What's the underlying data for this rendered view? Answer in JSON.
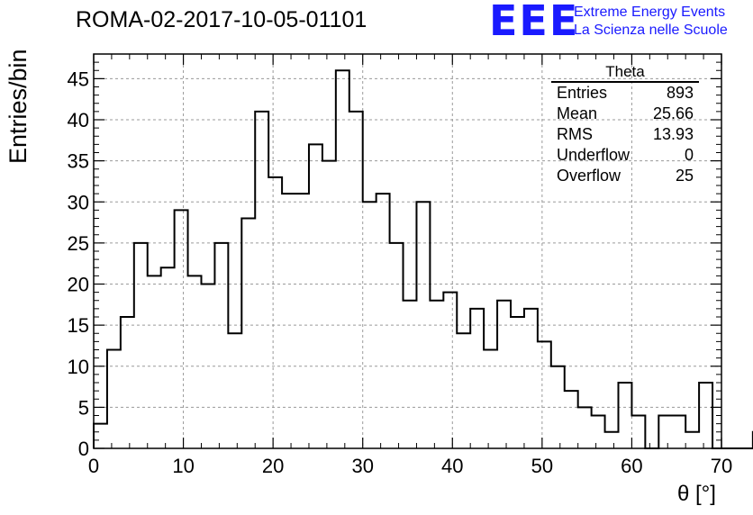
{
  "header": {
    "run_title": "ROMA-02-2017-10-05-01101",
    "logo_text": "EEE",
    "logo_line1": "Extreme Energy Events",
    "logo_line2": "La Scienza nelle Scuole"
  },
  "stats_box": {
    "title": "Theta",
    "rows": [
      {
        "label": "Entries",
        "value": "893"
      },
      {
        "label": "Mean",
        "value": "25.66"
      },
      {
        "label": "RMS",
        "value": "13.93"
      },
      {
        "label": "Underflow",
        "value": "0"
      },
      {
        "label": "Overflow",
        "value": "25"
      }
    ]
  },
  "colors": {
    "logo": "#1a1aff",
    "line": "#000000",
    "grid": "#9a9a9a"
  },
  "chart_data": {
    "type": "bar",
    "style": "step histogram",
    "xlabel": "θ [°]",
    "ylabel": "Entries/bin",
    "xlim": [
      0,
      70
    ],
    "ylim": [
      0,
      48
    ],
    "x_ticks": [
      0,
      10,
      20,
      30,
      40,
      50,
      60,
      70
    ],
    "y_ticks": [
      0,
      5,
      10,
      15,
      20,
      25,
      30,
      35,
      40,
      45
    ],
    "bin_width": 1.5,
    "bin_edges_start": 0,
    "values": [
      3,
      12,
      16,
      25,
      21,
      22,
      29,
      21,
      20,
      25,
      14,
      28,
      41,
      33,
      31,
      31,
      37,
      35,
      46,
      41,
      30,
      31,
      25,
      18,
      30,
      18,
      19,
      14,
      17,
      12,
      18,
      16,
      17,
      13,
      10,
      7,
      5,
      4,
      2,
      8,
      4,
      0,
      4,
      4,
      2,
      8,
      0,
      0,
      0,
      2
    ],
    "grid": true
  }
}
